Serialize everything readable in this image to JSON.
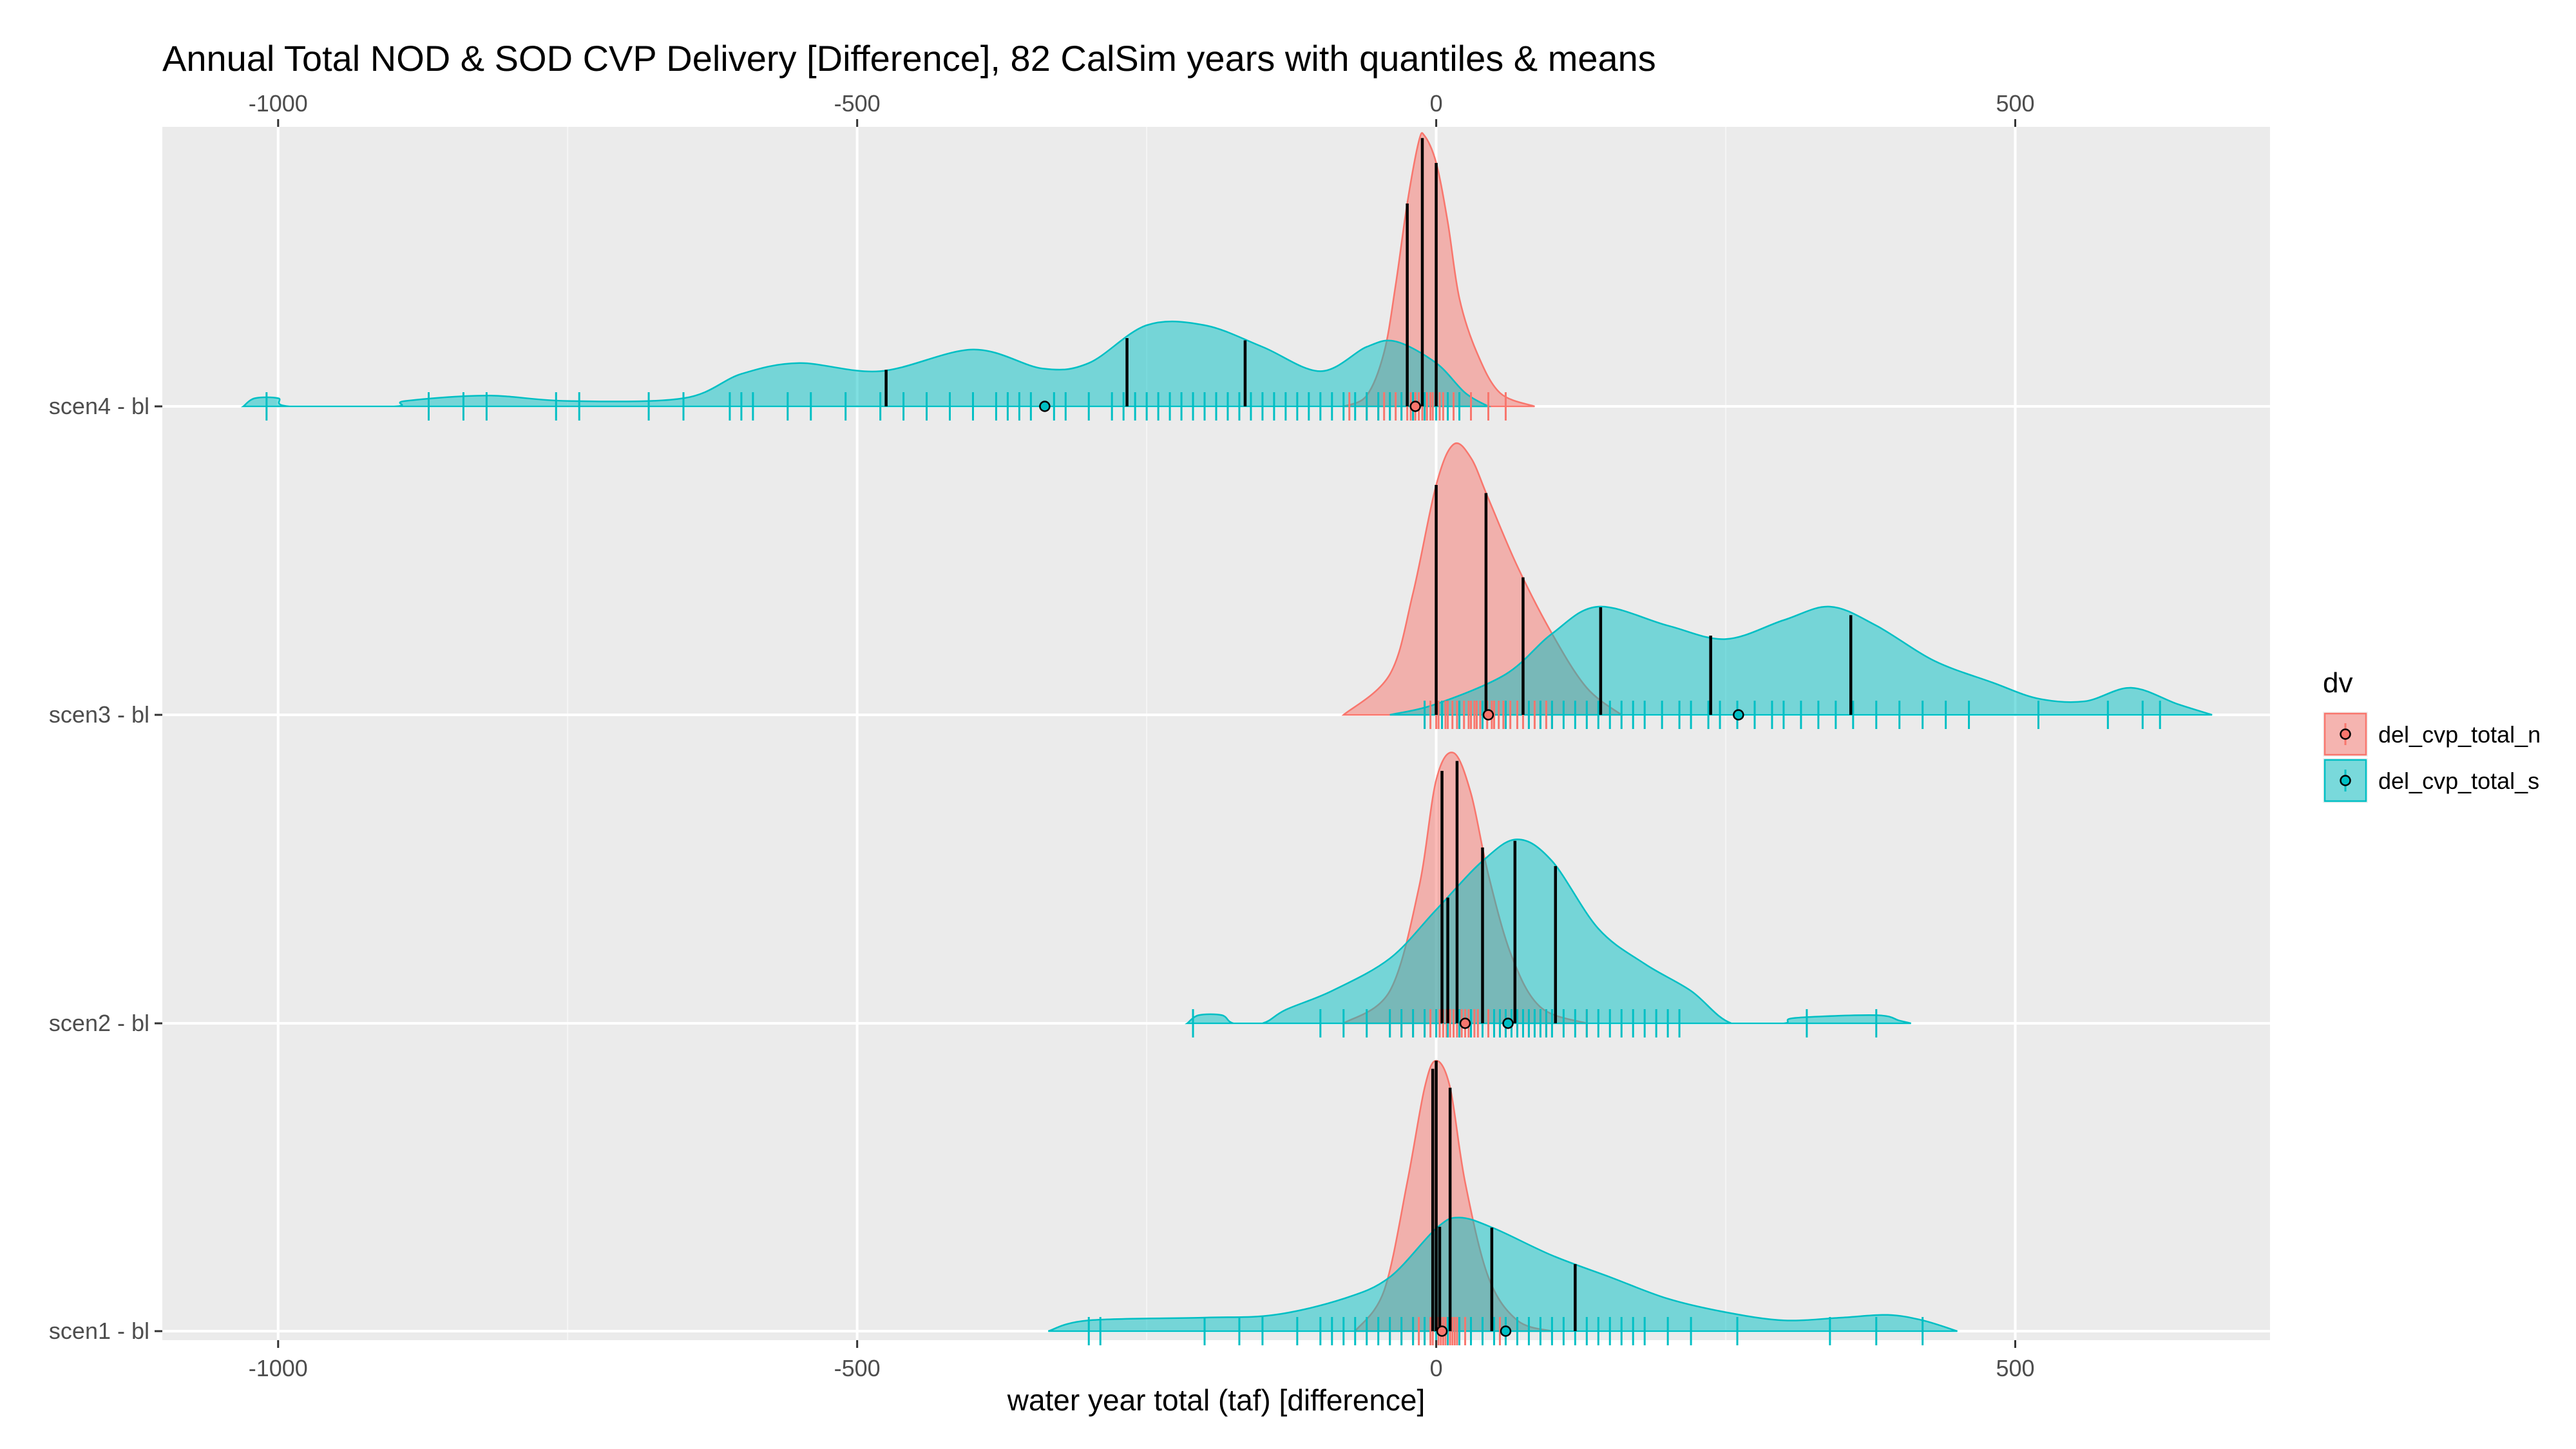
{
  "chart_data": {
    "type": "density",
    "title": "Annual Total NOD & SOD CVP Delivery [Difference], 82 CalSim years with quantiles & means",
    "xlabel": "water year total (taf) [difference]",
    "ylabel": "",
    "xlim": [
      -1100,
      720
    ],
    "x_ticks": [
      -1000,
      -500,
      0,
      500
    ],
    "x_tick_labels": [
      "-1000",
      "-500",
      "0",
      "500"
    ],
    "secondary_x_axis": "top",
    "categories": [
      "scen4 - bl",
      "scen3 - bl",
      "scen2 - bl",
      "scen1 - bl"
    ],
    "legend": {
      "title": "dv",
      "position": "right"
    },
    "grid": true,
    "colors": {
      "del_cvp_total_n": "#F8766D",
      "del_cvp_total_s": "#00BFC4",
      "panel": "#EBEBEB",
      "quantile_line": "#000000"
    },
    "series": [
      {
        "name": "del_cvp_total_n",
        "groups": {
          "scen4 - bl": {
            "density": [
              [
                -80,
                0
              ],
              [
                -60,
                0.04
              ],
              [
                -45,
                0.2
              ],
              [
                -35,
                0.45
              ],
              [
                -25,
                0.75
              ],
              [
                -15,
                0.98
              ],
              [
                -10,
                1.0
              ],
              [
                0,
                0.9
              ],
              [
                10,
                0.68
              ],
              [
                20,
                0.4
              ],
              [
                35,
                0.2
              ],
              [
                55,
                0.05
              ],
              [
                85,
                0
              ]
            ],
            "quantiles": [
              -25,
              -12,
              0
            ],
            "mean": -18,
            "rug": [
              -75,
              -60,
              -50,
              -45,
              -40,
              -35,
              -30,
              -25,
              -22,
              -20,
              -18,
              -15,
              -12,
              -10,
              -8,
              -5,
              -3,
              0,
              3,
              6,
              10,
              15,
              20,
              30,
              45,
              60
            ]
          },
          "scen3 - bl": {
            "density": [
              [
                -80,
                0
              ],
              [
                -40,
                0.15
              ],
              [
                -20,
                0.45
              ],
              [
                0,
                0.85
              ],
              [
                15,
                1.0
              ],
              [
                30,
                0.95
              ],
              [
                45,
                0.8
              ],
              [
                70,
                0.55
              ],
              [
                100,
                0.3
              ],
              [
                130,
                0.1
              ],
              [
                160,
                0
              ]
            ],
            "quantiles": [
              0,
              43,
              75
            ],
            "mean": 45,
            "rug": [
              -10,
              -5,
              0,
              2,
              5,
              8,
              10,
              14,
              18,
              20,
              24,
              28,
              30,
              33,
              35,
              38,
              40,
              44,
              48,
              50,
              54,
              58,
              60,
              64,
              70,
              75,
              80,
              85,
              90,
              95,
              100
            ]
          },
          "scen2 - bl": {
            "density": [
              [
                -80,
                0
              ],
              [
                -40,
                0.12
              ],
              [
                -15,
                0.5
              ],
              [
                0,
                0.9
              ],
              [
                15,
                1.0
              ],
              [
                30,
                0.85
              ],
              [
                45,
                0.55
              ],
              [
                65,
                0.25
              ],
              [
                90,
                0.06
              ],
              [
                130,
                0
              ]
            ],
            "quantiles": [
              5,
              18,
              40
            ],
            "mean": 25,
            "rug": [
              -40,
              -30,
              -20,
              -10,
              -5,
              0,
              3,
              6,
              9,
              12,
              15,
              18,
              20,
              22,
              25,
              28,
              30,
              33,
              36,
              40,
              45,
              50,
              55,
              60,
              70,
              80,
              95,
              130
            ]
          },
          "scen1 - bl": {
            "density": [
              [
                -70,
                0
              ],
              [
                -45,
                0.15
              ],
              [
                -25,
                0.55
              ],
              [
                -10,
                0.9
              ],
              [
                0,
                1.0
              ],
              [
                12,
                0.9
              ],
              [
                25,
                0.55
              ],
              [
                45,
                0.2
              ],
              [
                70,
                0.04
              ],
              [
                100,
                0
              ]
            ],
            "quantiles": [
              -3,
              0,
              12
            ],
            "mean": 5,
            "rug": [
              -40,
              -30,
              -20,
              -15,
              -10,
              -5,
              -3,
              0,
              2,
              4,
              6,
              8,
              10,
              12,
              14,
              16,
              18,
              20,
              25,
              30,
              40,
              55
            ]
          }
        }
      },
      {
        "name": "del_cvp_total_s",
        "groups": {
          "scen4 - bl": {
            "density": [
              [
                -1030,
                0
              ],
              [
                -1020,
                0.03
              ],
              [
                -1000,
                0.03
              ],
              [
                -990,
                0
              ],
              [
                -900,
                0
              ],
              [
                -890,
                0.02
              ],
              [
                -820,
                0.04
              ],
              [
                -750,
                0.02
              ],
              [
                -650,
                0.03
              ],
              [
                -600,
                0.12
              ],
              [
                -550,
                0.16
              ],
              [
                -480,
                0.13
              ],
              [
                -400,
                0.21
              ],
              [
                -340,
                0.14
              ],
              [
                -300,
                0.16
              ],
              [
                -250,
                0.3
              ],
              [
                -200,
                0.3
              ],
              [
                -150,
                0.22
              ],
              [
                -100,
                0.13
              ],
              [
                -60,
                0.22
              ],
              [
                -35,
                0.24
              ],
              [
                0,
                0.16
              ],
              [
                25,
                0.05
              ],
              [
                45,
                0
              ]
            ],
            "quantiles": [
              -475,
              -267,
              -165
            ],
            "mean": -338,
            "rug": [
              -1010,
              -870,
              -840,
              -820,
              -760,
              -740,
              -680,
              -650,
              -610,
              -600,
              -590,
              -560,
              -540,
              -510,
              -480,
              -460,
              -440,
              -420,
              -400,
              -380,
              -370,
              -360,
              -350,
              -330,
              -320,
              -300,
              -280,
              -270,
              -260,
              -250,
              -240,
              -230,
              -220,
              -210,
              -200,
              -190,
              -180,
              -170,
              -160,
              -150,
              -140,
              -130,
              -120,
              -110,
              -100,
              -90,
              -80,
              -70,
              -60,
              -50,
              -40,
              -30,
              -20,
              -10,
              0,
              10,
              20
            ]
          },
          "scen3 - bl": {
            "density": [
              [
                -40,
                0
              ],
              [
                0,
                0.04
              ],
              [
                60,
                0.15
              ],
              [
                100,
                0.3
              ],
              [
                140,
                0.4
              ],
              [
                200,
                0.33
              ],
              [
                250,
                0.28
              ],
              [
                300,
                0.35
              ],
              [
                340,
                0.4
              ],
              [
                380,
                0.33
              ],
              [
                430,
                0.2
              ],
              [
                480,
                0.12
              ],
              [
                520,
                0.06
              ],
              [
                560,
                0.05
              ],
              [
                600,
                0.1
              ],
              [
                640,
                0.04
              ],
              [
                670,
                0
              ]
            ],
            "quantiles": [
              142,
              237,
              358
            ],
            "mean": 261,
            "rug": [
              -10,
              5,
              20,
              40,
              60,
              80,
              90,
              100,
              110,
              120,
              130,
              140,
              150,
              160,
              170,
              180,
              195,
              210,
              220,
              235,
              245,
              260,
              275,
              290,
              300,
              315,
              330,
              345,
              360,
              380,
              400,
              420,
              440,
              460,
              520,
              580,
              610,
              625
            ]
          },
          "scen2 - bl": {
            "density": [
              [
                -215,
                0
              ],
              [
                -205,
                0.03
              ],
              [
                -185,
                0.03
              ],
              [
                -175,
                0
              ],
              [
                -150,
                0
              ],
              [
                -130,
                0.05
              ],
              [
                -90,
                0.12
              ],
              [
                -40,
                0.24
              ],
              [
                0,
                0.42
              ],
              [
                40,
                0.6
              ],
              [
                70,
                0.68
              ],
              [
                100,
                0.6
              ],
              [
                140,
                0.35
              ],
              [
                180,
                0.22
              ],
              [
                220,
                0.12
              ],
              [
                255,
                0
              ],
              [
                300,
                0
              ],
              [
                310,
                0.02
              ],
              [
                380,
                0.03
              ],
              [
                400,
                0.01
              ],
              [
                410,
                0
              ]
            ],
            "quantiles": [
              10,
              68,
              103
            ],
            "mean": 62,
            "rug": [
              -210,
              -100,
              -80,
              -60,
              -40,
              -30,
              -20,
              -10,
              0,
              10,
              20,
              30,
              40,
              50,
              55,
              60,
              65,
              70,
              75,
              80,
              85,
              90,
              95,
              100,
              110,
              120,
              130,
              140,
              150,
              160,
              170,
              180,
              190,
              200,
              210,
              320,
              380
            ]
          },
          "scen1 - bl": {
            "density": [
              [
                -335,
                0
              ],
              [
                -300,
                0.04
              ],
              [
                -200,
                0.05
              ],
              [
                -140,
                0.06
              ],
              [
                -80,
                0.12
              ],
              [
                -40,
                0.2
              ],
              [
                0,
                0.38
              ],
              [
                20,
                0.42
              ],
              [
                50,
                0.38
              ],
              [
                100,
                0.28
              ],
              [
                150,
                0.2
              ],
              [
                200,
                0.12
              ],
              [
                250,
                0.07
              ],
              [
                300,
                0.04
              ],
              [
                350,
                0.05
              ],
              [
                390,
                0.06
              ],
              [
                420,
                0.04
              ],
              [
                450,
                0
              ]
            ],
            "quantiles": [
              3,
              48,
              120
            ],
            "mean": 60,
            "rug": [
              -300,
              -290,
              -200,
              -170,
              -150,
              -120,
              -100,
              -90,
              -80,
              -70,
              -60,
              -50,
              -40,
              -30,
              -20,
              -10,
              0,
              10,
              20,
              30,
              40,
              50,
              60,
              70,
              80,
              90,
              100,
              110,
              120,
              130,
              140,
              150,
              160,
              170,
              180,
              200,
              220,
              260,
              340,
              380,
              420
            ]
          }
        }
      }
    ]
  }
}
